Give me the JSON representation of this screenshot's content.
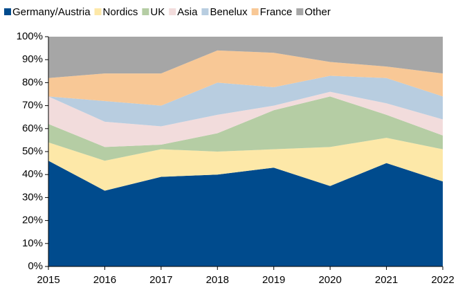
{
  "chart_data": {
    "type": "stacked_area",
    "categories": [
      "2015",
      "2016",
      "2017",
      "2018",
      "2019",
      "2020",
      "2021",
      "2022"
    ],
    "series": [
      {
        "name": "Germany/Austria",
        "color": "#004b8d",
        "values": [
          46,
          33,
          39,
          40,
          43,
          35,
          45,
          37
        ]
      },
      {
        "name": "Nordics",
        "color": "#fde8a8",
        "values": [
          8,
          13,
          12,
          10,
          8,
          17,
          11,
          14
        ]
      },
      {
        "name": "UK",
        "color": "#b5cda4",
        "values": [
          8,
          6,
          2,
          8,
          17,
          22,
          10,
          6
        ]
      },
      {
        "name": "Asia",
        "color": "#f2dcdc",
        "values": [
          12,
          11,
          8,
          8,
          2,
          2,
          5,
          7
        ]
      },
      {
        "name": "Benelux",
        "color": "#b8cde0",
        "values": [
          0,
          9,
          9,
          14,
          8,
          7,
          11,
          10
        ]
      },
      {
        "name": "France",
        "color": "#f8c896",
        "values": [
          8,
          12,
          14,
          14,
          15,
          6,
          5,
          10
        ]
      },
      {
        "name": "Other",
        "color": "#a6a6a6",
        "values": [
          18,
          16,
          16,
          6,
          7,
          11,
          13,
          16
        ]
      }
    ],
    "ylim": [
      0,
      100
    ],
    "yticks": [
      {
        "value": 0,
        "label": "0%"
      },
      {
        "value": 10,
        "label": "10%"
      },
      {
        "value": 20,
        "label": "20%"
      },
      {
        "value": 30,
        "label": "30%"
      },
      {
        "value": 40,
        "label": "40%"
      },
      {
        "value": 50,
        "label": "50%"
      },
      {
        "value": 60,
        "label": "60%"
      },
      {
        "value": 70,
        "label": "70%"
      },
      {
        "value": 80,
        "label": "80%"
      },
      {
        "value": 90,
        "label": "90%"
      },
      {
        "value": 100,
        "label": "100%"
      }
    ],
    "legend": "top"
  }
}
